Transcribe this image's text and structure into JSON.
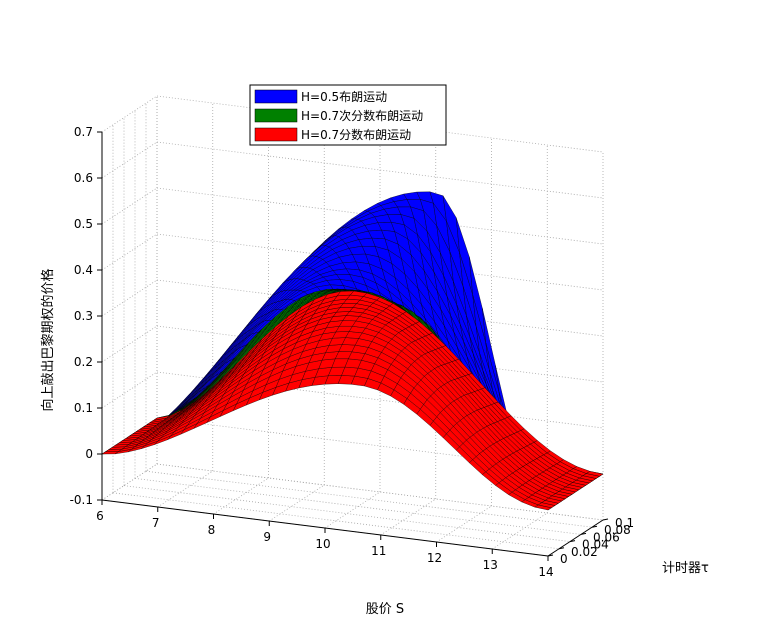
{
  "chart_data": {
    "type": "surface",
    "xlabel": "股价 S",
    "ylabel": "计时器τ",
    "zlabel": "向上敲出巴黎期权的价格",
    "xlim": [
      6,
      14
    ],
    "ylim": [
      0,
      0.1
    ],
    "zlim": [
      -0.1,
      0.7
    ],
    "x_ticks": [
      "6",
      "7",
      "8",
      "9",
      "10",
      "11",
      "12",
      "13",
      "14"
    ],
    "y_ticks": [
      "0",
      "0.02",
      "0.04",
      "0.06",
      "0.08",
      "0.1"
    ],
    "z_ticks": [
      "-0.1",
      "0",
      "0.1",
      "0.2",
      "0.3",
      "0.4",
      "0.5",
      "0.6",
      "0.7"
    ],
    "grid": true,
    "legend_position": "top-left",
    "series": [
      {
        "name": "H=0.5布朗运动",
        "color": "#0000ff",
        "tau": [
          0,
          0.02,
          0.04,
          0.06,
          0.08,
          0.1
        ],
        "peak_S": [
          12.0,
          11.2,
          10.6,
          10.0,
          9.5,
          9.1
        ],
        "peak_value": [
          0.66,
          0.58,
          0.5,
          0.42,
          0.36,
          0.3
        ],
        "barrier_S": 14
      },
      {
        "name": "H=0.7次分数布朗运动",
        "color": "#008000",
        "tau": [
          0,
          0.02,
          0.04,
          0.06,
          0.08,
          0.1
        ],
        "peak_S": [
          11.5,
          11.0,
          10.5,
          10.1,
          9.7,
          9.3
        ],
        "peak_value": [
          0.39,
          0.39,
          0.38,
          0.37,
          0.35,
          0.33
        ],
        "barrier_S": 14
      },
      {
        "name": "H=0.7分数布朗运动",
        "color": "#ff0000",
        "tau": [
          0,
          0.02,
          0.04,
          0.06,
          0.08,
          0.1
        ],
        "peak_S": [
          10.6,
          10.4,
          10.2,
          10.0,
          9.8,
          9.6
        ],
        "peak_value": [
          0.22,
          0.26,
          0.29,
          0.31,
          0.32,
          0.33
        ],
        "barrier_S": 14
      }
    ]
  }
}
